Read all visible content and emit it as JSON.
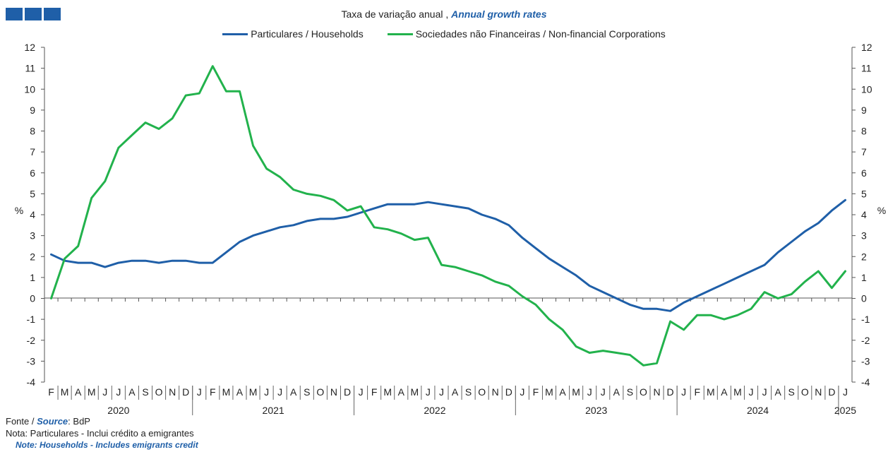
{
  "header": {
    "logo_icon": "bank-logo-squares",
    "title_pt": "Taxa de variação anual ,",
    "title_en": "Annual growth rates"
  },
  "footer": {
    "source_pt": "Fonte /",
    "source_en": "Source",
    "source_value": ": BdP",
    "note_pt": "Nota: Particulares - Inclui crédito a emigrantes",
    "note_en": "Note: Households - Includes emigrants credit"
  },
  "chart_data": {
    "type": "line",
    "ylabel_left": "%",
    "ylabel_right": "%",
    "ylim": [
      -4,
      12
    ],
    "yticks": [
      -4,
      -3,
      -2,
      -1,
      0,
      1,
      2,
      3,
      4,
      5,
      6,
      7,
      8,
      9,
      10,
      11,
      12
    ],
    "grid": false,
    "legend_position": "top-center",
    "month_labels": [
      "F",
      "M",
      "A",
      "M",
      "J",
      "J",
      "A",
      "S",
      "O",
      "N",
      "D",
      "J",
      "F",
      "M",
      "A",
      "M",
      "J",
      "J",
      "A",
      "S",
      "O",
      "N",
      "D",
      "J",
      "F",
      "M",
      "A",
      "M",
      "J",
      "J",
      "A",
      "S",
      "O",
      "N",
      "D",
      "J",
      "F",
      "M",
      "A",
      "M",
      "J",
      "J",
      "A",
      "S",
      "O",
      "N",
      "D",
      "J",
      "F",
      "M",
      "A",
      "M",
      "J",
      "J",
      "A",
      "S",
      "O",
      "N",
      "D",
      "J"
    ],
    "year_labels": [
      {
        "label": "2020",
        "start": 0,
        "end": 10
      },
      {
        "label": "2021",
        "start": 11,
        "end": 22
      },
      {
        "label": "2022",
        "start": 23,
        "end": 34
      },
      {
        "label": "2023",
        "start": 35,
        "end": 46
      },
      {
        "label": "2024",
        "start": 47,
        "end": 58
      },
      {
        "label": "2025",
        "start": 59,
        "end": 59
      }
    ],
    "series": [
      {
        "name": "Particulares / Households",
        "color": "#1f5fa8",
        "values": [
          2.1,
          1.8,
          1.7,
          1.7,
          1.5,
          1.7,
          1.8,
          1.8,
          1.7,
          1.8,
          1.8,
          1.7,
          1.7,
          2.2,
          2.7,
          3.0,
          3.2,
          3.4,
          3.5,
          3.7,
          3.8,
          3.8,
          3.9,
          4.1,
          4.3,
          4.5,
          4.5,
          4.5,
          4.6,
          4.5,
          4.4,
          4.3,
          4.0,
          3.8,
          3.5,
          2.9,
          2.4,
          1.9,
          1.5,
          1.1,
          0.6,
          0.3,
          0.0,
          -0.3,
          -0.5,
          -0.5,
          -0.6,
          -0.2,
          0.1,
          0.4,
          0.7,
          1.0,
          1.3,
          1.6,
          2.2,
          2.7,
          3.2,
          3.6,
          4.2,
          4.7
        ]
      },
      {
        "name": "Sociedades não Financeiras / Non-financial Corporations",
        "color": "#22b24c",
        "values": [
          0.0,
          1.9,
          2.5,
          4.8,
          5.6,
          7.2,
          7.8,
          8.4,
          8.1,
          8.6,
          9.7,
          9.8,
          11.1,
          9.9,
          9.9,
          7.3,
          6.2,
          5.8,
          5.2,
          5.0,
          4.9,
          4.7,
          4.2,
          4.4,
          3.4,
          3.3,
          3.1,
          2.8,
          2.9,
          1.6,
          1.5,
          1.3,
          1.1,
          0.8,
          0.6,
          0.1,
          -0.3,
          -1.0,
          -1.5,
          -2.3,
          -2.6,
          -2.5,
          -2.6,
          -2.7,
          -3.2,
          -3.1,
          -1.1,
          -1.5,
          -0.8,
          -0.8,
          -1.0,
          -0.8,
          -0.5,
          0.3,
          0.0,
          0.2,
          0.8,
          1.3,
          0.5,
          1.3
        ]
      }
    ]
  }
}
